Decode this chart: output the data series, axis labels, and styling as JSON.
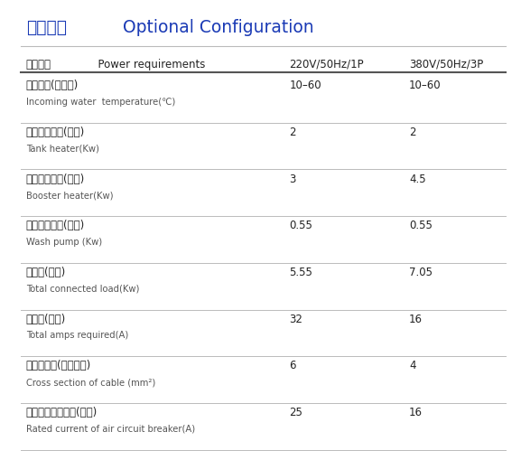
{
  "title_cn": "可选配置",
  "title_en": "  Optional Configuration",
  "title_color": "#1a3ab5",
  "header_col0": "电源要求  Power requirements",
  "header_col1": "220V/50Hz/1P",
  "header_col2": "380V/50Hz/3P",
  "rows": [
    {
      "cn": "进水温度(摄氏度)",
      "en": "Incoming water  temperature(℃)",
      "v1": "10–60",
      "v2": "10–60"
    },
    {
      "cn": "水槽加热功率(千瓦)",
      "en": "Tank heater(Kw)",
      "v1": "2",
      "v2": "2"
    },
    {
      "cn": "漂洗加热功率(千瓦)",
      "en": "Booster heater(Kw)",
      "v1": "3",
      "v2": "4.5"
    },
    {
      "cn": "清洗水泵功率(千瓦)",
      "en": "Wash pump (Kw)",
      "v1": "0.55",
      "v2": "0.55"
    },
    {
      "cn": "总功率(千瓦)",
      "en": "Total connected load(Kw)",
      "v1": "5.55",
      "v2": "7.05"
    },
    {
      "cn": "总电流(安培)",
      "en": "Total amps required(A)",
      "v1": "32",
      "v2": "16"
    },
    {
      "cn": "电源线截面(平方毫米)",
      "en": "Cross section of cable (mm²)",
      "v1": "6",
      "v2": "4"
    },
    {
      "cn": "空气开关额定电流(安培)",
      "en": "Rated current of air circuit breaker(A)",
      "v1": "25",
      "v2": "16"
    }
  ],
  "bg_color": "#ffffff",
  "text_color": "#222222",
  "line_color_heavy": "#555555",
  "line_color_light": "#bbbbbb",
  "cn_fontsize": 8.5,
  "en_fontsize": 7.2,
  "header_fontsize": 8.5,
  "val_fontsize": 8.5,
  "title_fontsize": 13.5
}
